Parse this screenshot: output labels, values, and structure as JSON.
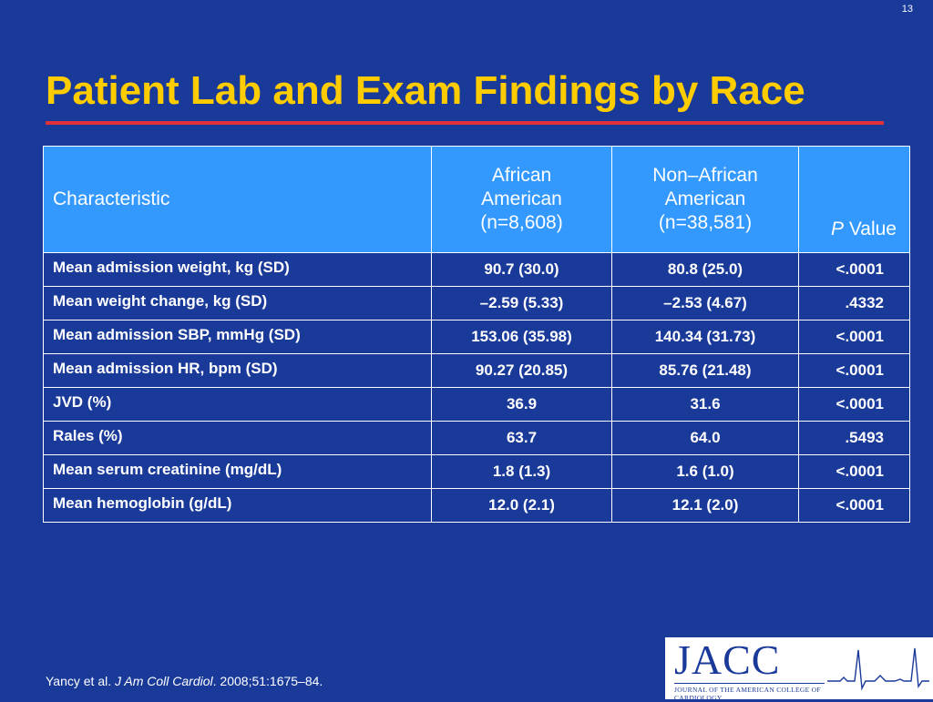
{
  "slide": {
    "number": "13",
    "title": "Patient Lab and Exam Findings by Race"
  },
  "table": {
    "headers": {
      "characteristic": "Characteristic",
      "aa_line1": "African",
      "aa_line2": "American",
      "aa_line3": "(n=8,608)",
      "naa_line1": "Non–African",
      "naa_line2": "American",
      "naa_line3": "(n=38,581)",
      "p_italic": "P",
      "p_rest": " Value"
    },
    "rows": [
      {
        "label": "Mean admission weight, kg (SD)",
        "aa": "90.7 (30.0)",
        "naa": "80.8 (25.0)",
        "p": "<.0001"
      },
      {
        "label": "Mean weight change, kg (SD)",
        "aa": "–2.59 (5.33)",
        "naa": "–2.53 (4.67)",
        "p": ".4332"
      },
      {
        "label": "Mean admission SBP, mmHg (SD)",
        "aa": "153.06 (35.98)",
        "naa": "140.34 (31.73)",
        "p": "<.0001"
      },
      {
        "label": "Mean admission HR, bpm (SD)",
        "aa": "90.27 (20.85)",
        "naa": "85.76 (21.48)",
        "p": "<.0001"
      },
      {
        "label": "JVD (%)",
        "aa": "36.9",
        "naa": "31.6",
        "p": "<.0001"
      },
      {
        "label": "Rales (%)",
        "aa": "63.7",
        "naa": "64.0",
        "p": ".5493"
      },
      {
        "label": "Mean serum creatinine (mg/dL)",
        "aa": "1.8 (1.3)",
        "naa": "1.6 (1.0)",
        "p": "<.0001"
      },
      {
        "label": "Mean hemoglobin (g/dL)",
        "aa": "12.0 (2.1)",
        "naa": "12.1 (2.0)",
        "p": "<.0001"
      }
    ]
  },
  "citation": {
    "authors": "Yancy et al. ",
    "journal": "J Am Coll Cardiol",
    "rest": ". 2008;51:1675–84."
  },
  "logo": {
    "name": "JACC",
    "subtitle": "JOURNAL OF THE AMERICAN COLLEGE OF CARDIOLOGY"
  },
  "colors": {
    "background": "#1a3a9a",
    "title": "#ffcc00",
    "rule": "#e0303a",
    "header_fill": "#3399ff"
  }
}
